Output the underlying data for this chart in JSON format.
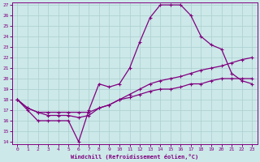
{
  "xlabel": "Windchill (Refroidissement éolien,°C)",
  "x_values": [
    0,
    1,
    2,
    3,
    4,
    5,
    6,
    7,
    8,
    9,
    10,
    11,
    12,
    13,
    14,
    15,
    16,
    17,
    18,
    19,
    20,
    21,
    22,
    23
  ],
  "line1": [
    18.0,
    17.0,
    16.0,
    16.0,
    16.0,
    16.0,
    14.0,
    17.0,
    19.5,
    19.2,
    19.5,
    21.0,
    23.5,
    25.8,
    27.0,
    27.0,
    27.0,
    26.0,
    24.0,
    23.2,
    22.8,
    20.5,
    19.8,
    19.5
  ],
  "line2": [
    18.0,
    17.2,
    16.8,
    16.5,
    16.5,
    16.5,
    16.3,
    16.5,
    17.2,
    17.5,
    18.0,
    18.5,
    19.0,
    19.5,
    19.8,
    20.0,
    20.2,
    20.5,
    20.8,
    21.0,
    21.2,
    21.5,
    21.8,
    22.0
  ],
  "line3": [
    18.0,
    17.2,
    16.8,
    16.8,
    16.8,
    16.8,
    16.8,
    16.8,
    17.2,
    17.5,
    18.0,
    18.2,
    18.5,
    18.8,
    19.0,
    19.0,
    19.2,
    19.5,
    19.5,
    19.8,
    20.0,
    20.0,
    20.0,
    20.0
  ],
  "bg_color": "#cce8e8",
  "grid_color": "#aacfcf",
  "line_color": "#800080",
  "ylim": [
    14,
    27
  ],
  "xlim": [
    -0.5,
    23.5
  ],
  "yticks": [
    14,
    15,
    16,
    17,
    18,
    19,
    20,
    21,
    22,
    23,
    24,
    25,
    26,
    27
  ],
  "xticks": [
    0,
    1,
    2,
    3,
    4,
    5,
    6,
    7,
    8,
    9,
    10,
    11,
    12,
    13,
    14,
    15,
    16,
    17,
    18,
    19,
    20,
    21,
    22,
    23
  ],
  "marker": "+",
  "marker_size": 3.5,
  "linewidth": 0.9
}
